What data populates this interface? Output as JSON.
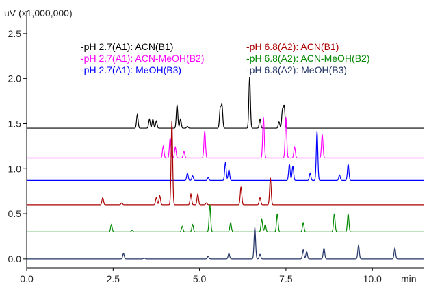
{
  "chart_data": {
    "type": "line",
    "ylabel": "uV (x1,000,000)",
    "xlabel": "min",
    "xlim": [
      0.0,
      11.5
    ],
    "ylim": [
      -0.1,
      2.75
    ],
    "xticks": [
      0.0,
      2.5,
      5.0,
      7.5,
      10.0
    ],
    "xtick_labels": [
      "0.0",
      "2.5",
      "5.0",
      "7.5",
      "10.0"
    ],
    "yticks": [
      0.0,
      0.5,
      1.0,
      1.5,
      2.0,
      2.5
    ],
    "ytick_labels": [
      "0.0",
      "0.5",
      "1.0",
      "1.5",
      "2.0",
      "2.5"
    ],
    "grid": false,
    "legend_placement": "top",
    "series": [
      {
        "name": "-pH 2.7(A1): ACN(B1)",
        "color": "#000000",
        "baseline": 1.45,
        "peaks": [
          [
            3.2,
            0.15
          ],
          [
            3.55,
            0.1
          ],
          [
            3.65,
            0.1
          ],
          [
            3.75,
            0.08
          ],
          [
            4.35,
            0.26
          ],
          [
            4.45,
            0.1
          ],
          [
            4.65,
            0.02
          ],
          [
            5.6,
            0.22
          ],
          [
            5.65,
            0.25
          ],
          [
            6.45,
            0.57
          ],
          [
            6.75,
            0.1
          ],
          [
            7.3,
            0.07
          ],
          [
            7.4,
            0.2
          ],
          [
            7.45,
            0.24
          ]
        ]
      },
      {
        "name": "-pH 2.7(A1): ACN-MeOH(B2)",
        "color": "#ff00ff",
        "baseline": 1.12,
        "peaks": [
          [
            3.95,
            0.13
          ],
          [
            4.15,
            0.22
          ],
          [
            4.3,
            0.12
          ],
          [
            4.55,
            0.07
          ],
          [
            5.15,
            0.3
          ],
          [
            6.85,
            0.45
          ],
          [
            7.5,
            0.45
          ],
          [
            7.75,
            0.12
          ],
          [
            8.55,
            0.26
          ]
        ]
      },
      {
        "name": "-pH 2.7(A1): MeOH(B3)",
        "color": "#0000ff",
        "baseline": 0.87,
        "peaks": [
          [
            4.65,
            0.08
          ],
          [
            4.8,
            0.05
          ],
          [
            5.25,
            0.03
          ],
          [
            5.75,
            0.2
          ],
          [
            5.85,
            0.12
          ],
          [
            7.6,
            0.18
          ],
          [
            7.7,
            0.16
          ],
          [
            8.2,
            0.08
          ],
          [
            8.4,
            0.55
          ],
          [
            9.05,
            0.06
          ],
          [
            9.3,
            0.18
          ]
        ]
      },
      {
        "name": "-pH 6.8(A2): ACN(B1)",
        "color": "#aa0000",
        "baseline": 0.6,
        "peaks": [
          [
            2.2,
            0.08
          ],
          [
            2.75,
            0.02
          ],
          [
            3.75,
            0.08
          ],
          [
            3.85,
            0.1
          ],
          [
            4.2,
            0.93
          ],
          [
            4.75,
            0.12
          ],
          [
            4.95,
            0.12
          ],
          [
            5.2,
            0.02
          ],
          [
            6.2,
            0.2
          ],
          [
            6.75,
            0.08
          ],
          [
            7.05,
            0.3
          ]
        ]
      },
      {
        "name": "-pH 6.8(A2): ACN-MeOH(B2)",
        "color": "#008800",
        "baseline": 0.3,
        "peaks": [
          [
            2.45,
            0.08
          ],
          [
            3.05,
            0.02
          ],
          [
            4.5,
            0.06
          ],
          [
            4.8,
            0.08
          ],
          [
            5.3,
            0.3
          ],
          [
            5.9,
            0.1
          ],
          [
            6.8,
            0.14
          ],
          [
            6.9,
            0.08
          ],
          [
            7.25,
            0.2
          ],
          [
            8.0,
            0.1
          ],
          [
            8.9,
            0.2
          ],
          [
            9.3,
            0.2
          ]
        ]
      },
      {
        "name": "-pH 6.8(A2): MeOH(B3)",
        "color": "#223366",
        "baseline": 0.0,
        "peaks": [
          [
            2.8,
            0.06
          ],
          [
            3.4,
            0.01
          ],
          [
            5.25,
            0.03
          ],
          [
            5.85,
            0.06
          ],
          [
            6.6,
            0.35
          ],
          [
            6.75,
            0.05
          ],
          [
            8.0,
            0.1
          ],
          [
            8.1,
            0.08
          ],
          [
            8.6,
            0.12
          ],
          [
            9.6,
            0.15
          ],
          [
            10.65,
            0.12
          ]
        ]
      }
    ]
  }
}
